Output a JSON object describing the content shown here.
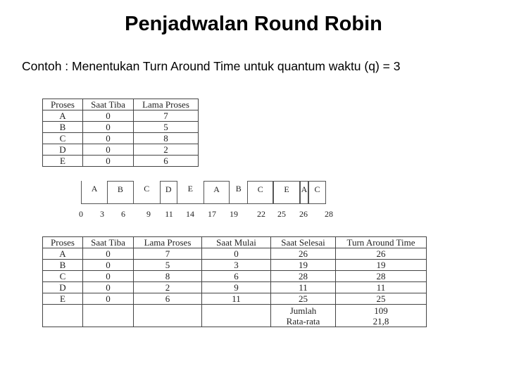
{
  "title": "Penjadwalan Round Robin",
  "subtitle": "Contoh : Menentukan Turn Around Time untuk quantum waktu (q) = 3",
  "table1": {
    "headers": [
      "Proses",
      "Saat Tiba",
      "Lama Proses"
    ],
    "rows": [
      [
        "A",
        "0",
        "7"
      ],
      [
        "B",
        "0",
        "5"
      ],
      [
        "C",
        "0",
        "8"
      ],
      [
        "D",
        "0",
        "2"
      ],
      [
        "E",
        "0",
        "6"
      ]
    ]
  },
  "gantt": {
    "segments": [
      {
        "label": "A",
        "start": 0,
        "end": 3,
        "boxed": false
      },
      {
        "label": "B",
        "start": 3,
        "end": 6,
        "boxed": true
      },
      {
        "label": "C",
        "start": 6,
        "end": 9,
        "boxed": false
      },
      {
        "label": "D",
        "start": 9,
        "end": 11,
        "boxed": true
      },
      {
        "label": "E",
        "start": 11,
        "end": 14,
        "boxed": false
      },
      {
        "label": "A",
        "start": 14,
        "end": 17,
        "boxed": true
      },
      {
        "label": "B",
        "start": 17,
        "end": 19,
        "boxed": false
      },
      {
        "label": "C",
        "start": 19,
        "end": 22,
        "boxed": true
      },
      {
        "label": "E",
        "start": 22,
        "end": 25,
        "boxed": true
      },
      {
        "label": "A",
        "start": 25,
        "end": 26,
        "boxed": true
      },
      {
        "label": "C",
        "start": 26,
        "end": 28,
        "boxed": true
      }
    ],
    "ticks": [
      "0",
      "3",
      "6",
      "9",
      "11",
      "14",
      "17",
      "19",
      "22",
      "25",
      "26",
      "28"
    ]
  },
  "table2": {
    "headers": [
      "Proses",
      "Saat Tiba",
      "Lama Proses",
      "Saat Mulai",
      "Saat Selesai",
      "Turn Around Time"
    ],
    "rows": [
      [
        "A",
        "0",
        "7",
        "0",
        "26",
        "26"
      ],
      [
        "B",
        "0",
        "5",
        "3",
        "19",
        "19"
      ],
      [
        "C",
        "0",
        "8",
        "6",
        "28",
        "28"
      ],
      [
        "D",
        "0",
        "2",
        "9",
        "11",
        "11"
      ],
      [
        "E",
        "0",
        "6",
        "11",
        "25",
        "25"
      ]
    ],
    "jumlah_label": "Jumlah",
    "jumlah_value": "109",
    "rata_label": "Rata-rata",
    "rata_value": "21,8"
  }
}
